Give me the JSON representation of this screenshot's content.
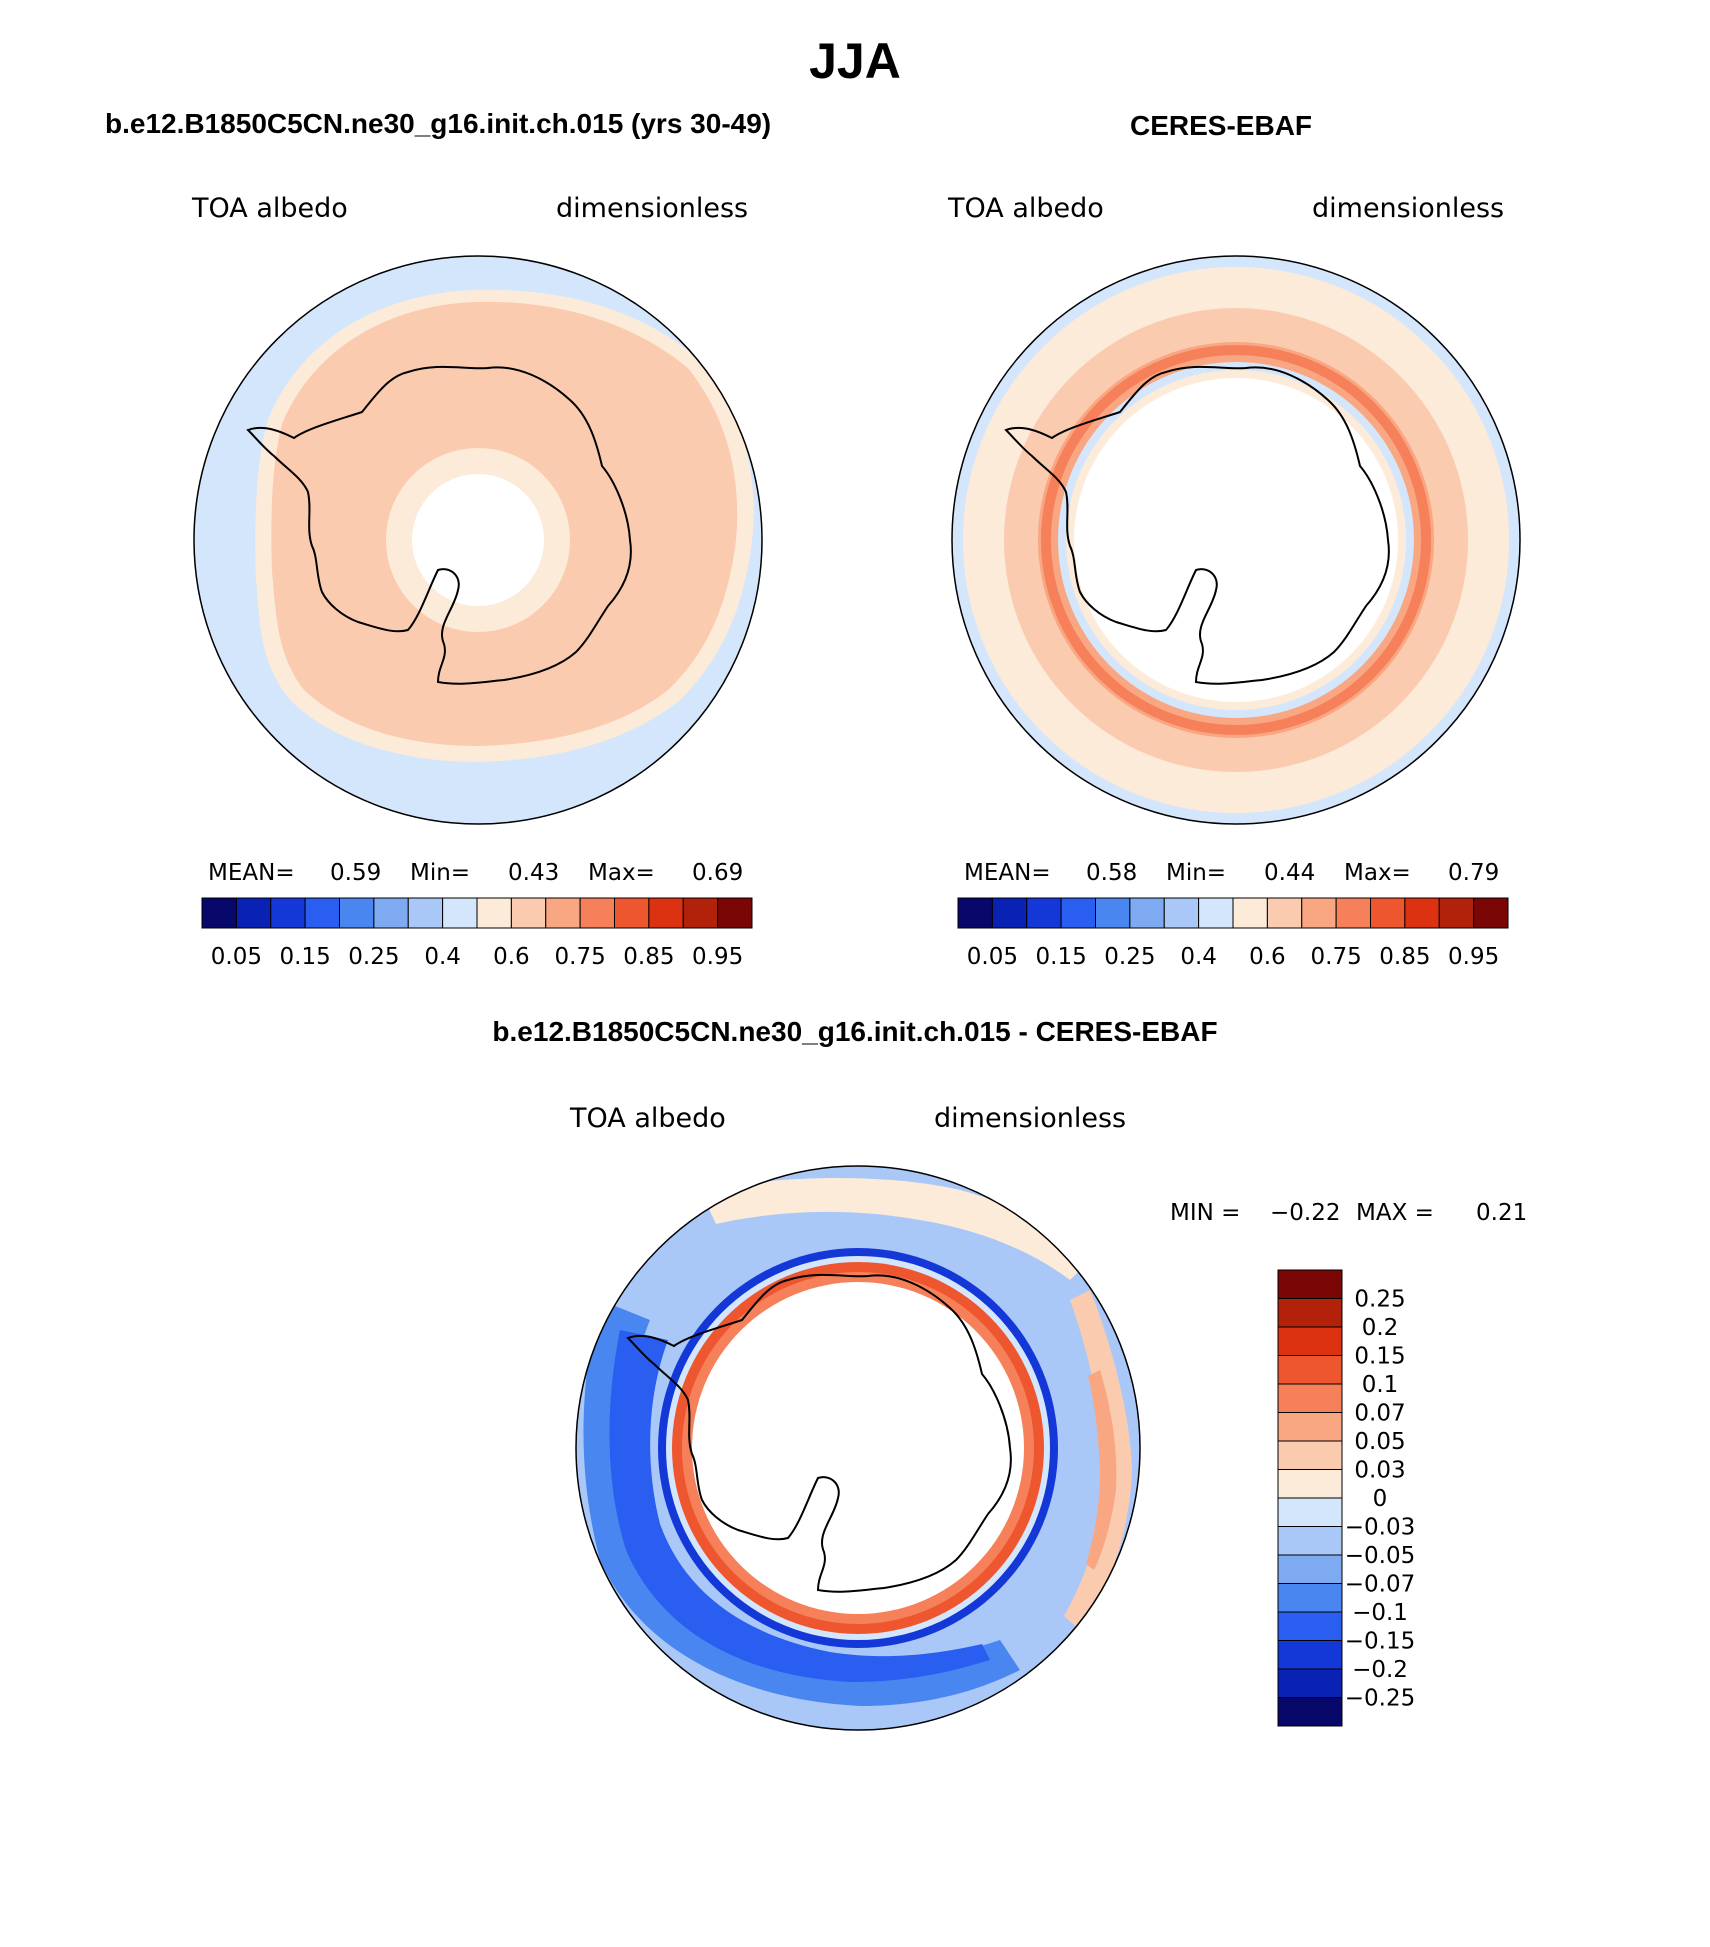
{
  "figure": {
    "season": "JJA"
  },
  "panels": [
    {
      "case": "b.e12.B1850C5CN.ne30_g16.init.ch.015 (yrs 30-49)",
      "variable": "TOA albedo",
      "units": "dimensionless",
      "stats": {
        "mean_label": "MEAN=",
        "mean": "0.59",
        "min_label": "Min=",
        "min": "0.43",
        "max_label": "Max=",
        "max": "0.69"
      },
      "field": {
        "outer_ocean": 0.35,
        "main_ring": 0.65,
        "inner_ring": 0.55
      }
    },
    {
      "case": "CERES-EBAF",
      "variable": "TOA albedo",
      "units": "dimensionless",
      "stats": {
        "mean_label": "MEAN=",
        "mean": "0.58",
        "min_label": "Min=",
        "min": "0.44",
        "max_label": "Max=",
        "max": "0.79"
      },
      "field": {
        "outer": 0.55,
        "middle": 0.65,
        "peak_ring": 0.75,
        "inner_band": 0.4
      }
    }
  ],
  "diff_panel": {
    "case": "b.e12.B1850C5CN.ne30_g16.init.ch.015 - CERES-EBAF",
    "variable": "TOA albedo",
    "units": "dimensionless",
    "min_label": "MIN =",
    "min": "−0.22",
    "max_label": "MAX =",
    "max": "0.21"
  },
  "colorbar_abs": {
    "colors": [
      "#08086b",
      "#0a22b4",
      "#1437d8",
      "#2a5ef0",
      "#4a86f0",
      "#7eaaf2",
      "#aac8f7",
      "#d4e6fb",
      "#fdebd9",
      "#fbcbb0",
      "#f9a782",
      "#f6805a",
      "#ee5630",
      "#dc3212",
      "#b2220a",
      "#7a0606"
    ],
    "labels": [
      "0.05",
      "0.15",
      "0.25",
      "0.4",
      "0.6",
      "0.75",
      "0.85",
      "0.95"
    ]
  },
  "colorbar_diff": {
    "colors": [
      "#7a0606",
      "#b2220a",
      "#dc3212",
      "#ee5630",
      "#f6805a",
      "#f9a782",
      "#fbcbb0",
      "#fdebd9",
      "#d4e6fb",
      "#aac8f7",
      "#7eaaf2",
      "#4a86f0",
      "#2a5ef0",
      "#1437d8",
      "#0a22b4",
      "#08086b"
    ],
    "labels": [
      "0.25",
      "0.2",
      "0.15",
      "0.1",
      "0.07",
      "0.05",
      "0.03",
      "0",
      "−0.03",
      "−0.05",
      "−0.07",
      "−0.1",
      "−0.15",
      "−0.2",
      "−0.25"
    ]
  },
  "chart_data": [
    {
      "type": "heatmap",
      "title": "b.e12.B1850C5CN.ne30_g16.init.ch.015 (yrs 30-49)",
      "projection": "south polar stereographic",
      "variable": "TOA albedo",
      "units": "dimensionless",
      "mean": 0.59,
      "min": 0.43,
      "max": 0.69,
      "contour_levels": [
        0.05,
        0.1,
        0.15,
        0.2,
        0.25,
        0.3,
        0.35,
        0.4,
        0.5,
        0.6,
        0.65,
        0.7,
        0.75,
        0.8,
        0.85,
        0.9,
        0.95
      ]
    },
    {
      "type": "heatmap",
      "title": "CERES-EBAF",
      "projection": "south polar stereographic",
      "variable": "TOA albedo",
      "units": "dimensionless",
      "mean": 0.58,
      "min": 0.44,
      "max": 0.79,
      "contour_levels": [
        0.05,
        0.1,
        0.15,
        0.2,
        0.25,
        0.3,
        0.35,
        0.4,
        0.5,
        0.6,
        0.65,
        0.7,
        0.75,
        0.8,
        0.85,
        0.9,
        0.95
      ]
    },
    {
      "type": "heatmap",
      "title": "b.e12.B1850C5CN.ne30_g16.init.ch.015 - CERES-EBAF",
      "projection": "south polar stereographic",
      "variable": "TOA albedo",
      "units": "dimensionless",
      "min": -0.22,
      "max": 0.21,
      "contour_levels": [
        -0.25,
        -0.2,
        -0.15,
        -0.1,
        -0.07,
        -0.05,
        -0.03,
        0,
        0.03,
        0.05,
        0.07,
        0.1,
        0.15,
        0.2,
        0.25
      ]
    }
  ]
}
